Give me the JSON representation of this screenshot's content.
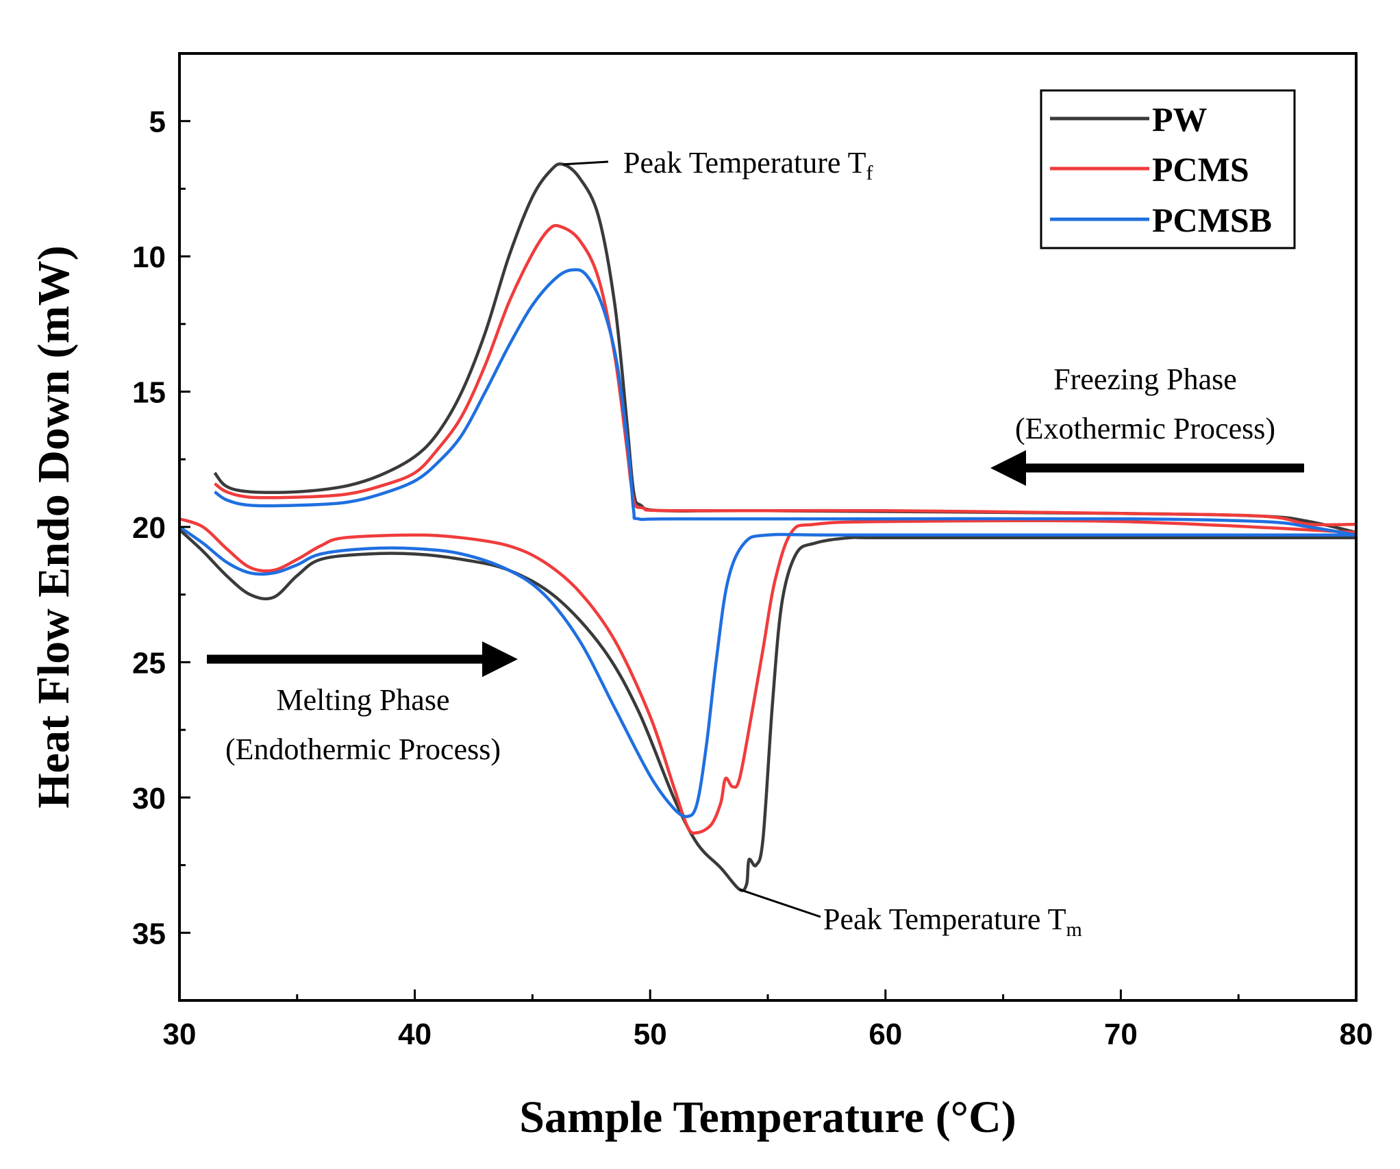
{
  "chart_data": {
    "type": "line",
    "title": "",
    "xlabel": "Sample Temperature (°C)",
    "ylabel": "Heat Flow Endo Down (mW)",
    "xlim": [
      30,
      80
    ],
    "ylim": [
      2.5,
      37.5
    ],
    "y_inverted": true,
    "xticks": [
      30,
      40,
      50,
      60,
      70,
      80
    ],
    "yticks": [
      5,
      10,
      15,
      20,
      25,
      30,
      35
    ],
    "legend": {
      "position": "top-right"
    },
    "series": [
      {
        "name": "PW",
        "color": "#3a3a3a",
        "segments": [
          {
            "points": [
              [
                31.5,
                18.0
              ],
              [
                32,
                18.5
              ],
              [
                33,
                18.7
              ],
              [
                35,
                18.7
              ],
              [
                37,
                18.5
              ],
              [
                38.5,
                18.1
              ],
              [
                40,
                17.4
              ],
              [
                41,
                16.5
              ],
              [
                42,
                15.0
              ],
              [
                43,
                12.8
              ],
              [
                44,
                10.0
              ],
              [
                45,
                7.8
              ],
              [
                45.8,
                6.8
              ],
              [
                46.3,
                6.6
              ],
              [
                47,
                7.1
              ],
              [
                47.8,
                8.5
              ],
              [
                48.5,
                11.8
              ],
              [
                49,
                16.0
              ],
              [
                49.3,
                18.7
              ],
              [
                49.6,
                19.2
              ],
              [
                50.5,
                19.4
              ],
              [
                55,
                19.4
              ],
              [
                70,
                19.5
              ],
              [
                76,
                19.6
              ],
              [
                78,
                19.8
              ],
              [
                80,
                20.2
              ]
            ]
          },
          {
            "points": [
              [
                30,
                20.1
              ],
              [
                31,
                20.9
              ],
              [
                32,
                21.8
              ],
              [
                33,
                22.5
              ],
              [
                34,
                22.6
              ],
              [
                35,
                21.8
              ],
              [
                36,
                21.2
              ],
              [
                38,
                21.0
              ],
              [
                40,
                21.0
              ],
              [
                42,
                21.2
              ],
              [
                44,
                21.6
              ],
              [
                46,
                22.6
              ],
              [
                48,
                24.5
              ],
              [
                49.5,
                26.8
              ],
              [
                51,
                30.0
              ],
              [
                52,
                31.7
              ],
              [
                53,
                32.6
              ],
              [
                53.8,
                33.4
              ],
              [
                54.1,
                33.2
              ],
              [
                54.2,
                32.3
              ],
              [
                54.5,
                32.5
              ],
              [
                54.8,
                31.5
              ],
              [
                55.2,
                26.5
              ],
              [
                55.6,
                22.8
              ],
              [
                56.2,
                21.0
              ],
              [
                57,
                20.6
              ],
              [
                58.5,
                20.4
              ],
              [
                60,
                20.4
              ],
              [
                70,
                20.4
              ],
              [
                80,
                20.4
              ]
            ]
          }
        ]
      },
      {
        "name": "PCMS",
        "color": "#f03c3c",
        "segments": [
          {
            "points": [
              [
                31.5,
                18.4
              ],
              [
                32,
                18.7
              ],
              [
                33,
                18.9
              ],
              [
                35,
                18.9
              ],
              [
                37,
                18.8
              ],
              [
                38.5,
                18.5
              ],
              [
                40,
                18.0
              ],
              [
                41,
                17.1
              ],
              [
                42,
                15.9
              ],
              [
                43,
                14.0
              ],
              [
                44,
                11.7
              ],
              [
                45,
                9.9
              ],
              [
                45.7,
                9.0
              ],
              [
                46.2,
                8.9
              ],
              [
                47,
                9.4
              ],
              [
                47.8,
                10.8
              ],
              [
                48.5,
                13.7
              ],
              [
                49,
                17.0
              ],
              [
                49.3,
                19.0
              ],
              [
                49.7,
                19.3
              ],
              [
                51,
                19.4
              ],
              [
                60,
                19.4
              ],
              [
                70,
                19.5
              ],
              [
                76,
                19.6
              ],
              [
                78,
                19.9
              ],
              [
                80,
                19.9
              ]
            ]
          },
          {
            "points": [
              [
                30,
                19.7
              ],
              [
                31,
                20.0
              ],
              [
                32,
                20.8
              ],
              [
                33,
                21.5
              ],
              [
                34,
                21.6
              ],
              [
                35,
                21.2
              ],
              [
                36,
                20.7
              ],
              [
                37,
                20.4
              ],
              [
                40,
                20.3
              ],
              [
                42,
                20.4
              ],
              [
                44,
                20.7
              ],
              [
                45.5,
                21.3
              ],
              [
                47,
                22.4
              ],
              [
                48.5,
                24.2
              ],
              [
                50,
                27.0
              ],
              [
                51,
                29.6
              ],
              [
                51.6,
                31.1
              ],
              [
                52,
                31.3
              ],
              [
                52.6,
                31.0
              ],
              [
                53,
                30.2
              ],
              [
                53.2,
                29.3
              ],
              [
                53.5,
                29.6
              ],
              [
                53.8,
                29.3
              ],
              [
                54.3,
                27.0
              ],
              [
                54.8,
                24.5
              ],
              [
                55.3,
                22.0
              ],
              [
                56,
                20.2
              ],
              [
                57,
                19.9
              ],
              [
                60,
                19.8
              ],
              [
                70,
                19.8
              ],
              [
                80,
                20.2
              ]
            ]
          }
        ]
      },
      {
        "name": "PCMSB",
        "color": "#1f6fe0",
        "segments": [
          {
            "points": [
              [
                31.5,
                18.7
              ],
              [
                32,
                19.0
              ],
              [
                33,
                19.2
              ],
              [
                35,
                19.2
              ],
              [
                37,
                19.1
              ],
              [
                38.5,
                18.8
              ],
              [
                40,
                18.3
              ],
              [
                41,
                17.6
              ],
              [
                42,
                16.6
              ],
              [
                43,
                15.0
              ],
              [
                44,
                13.3
              ],
              [
                45,
                11.8
              ],
              [
                46,
                10.8
              ],
              [
                46.7,
                10.5
              ],
              [
                47.3,
                10.7
              ],
              [
                48,
                11.9
              ],
              [
                48.6,
                14.0
              ],
              [
                49.1,
                17.4
              ],
              [
                49.3,
                19.4
              ],
              [
                49.5,
                19.7
              ],
              [
                51,
                19.7
              ],
              [
                60,
                19.7
              ],
              [
                70,
                19.7
              ],
              [
                76,
                19.8
              ],
              [
                78,
                20.0
              ],
              [
                80,
                20.3
              ]
            ]
          },
          {
            "points": [
              [
                30,
                20.0
              ],
              [
                31,
                20.6
              ],
              [
                32,
                21.3
              ],
              [
                33,
                21.7
              ],
              [
                34,
                21.7
              ],
              [
                35,
                21.4
              ],
              [
                36,
                21.0
              ],
              [
                38,
                20.8
              ],
              [
                40,
                20.8
              ],
              [
                42,
                21.0
              ],
              [
                44,
                21.6
              ],
              [
                45.5,
                22.5
              ],
              [
                47,
                24.2
              ],
              [
                48.5,
                26.7
              ],
              [
                50,
                29.2
              ],
              [
                51,
                30.4
              ],
              [
                51.6,
                30.7
              ],
              [
                52,
                30.2
              ],
              [
                52.4,
                28.0
              ],
              [
                52.8,
                25.0
              ],
              [
                53.3,
                22.0
              ],
              [
                54,
                20.6
              ],
              [
                55,
                20.3
              ],
              [
                58,
                20.3
              ],
              [
                70,
                20.3
              ],
              [
                80,
                20.3
              ]
            ]
          }
        ]
      }
    ],
    "annotations": [
      {
        "id": "tf",
        "text": "Peak Temperature T",
        "sub": "f",
        "point": [
          46.3,
          6.6
        ]
      },
      {
        "id": "tm",
        "text": "Peak Temperature T",
        "sub": "m",
        "point": [
          53.8,
          33.4
        ]
      },
      {
        "id": "freezing-1",
        "text": "Freezing Phase"
      },
      {
        "id": "freezing-2",
        "text": "(Exothermic Process)"
      },
      {
        "id": "melting-1",
        "text": "Melting Phase"
      },
      {
        "id": "melting-2",
        "text": "(Endothermic Process)"
      }
    ]
  }
}
